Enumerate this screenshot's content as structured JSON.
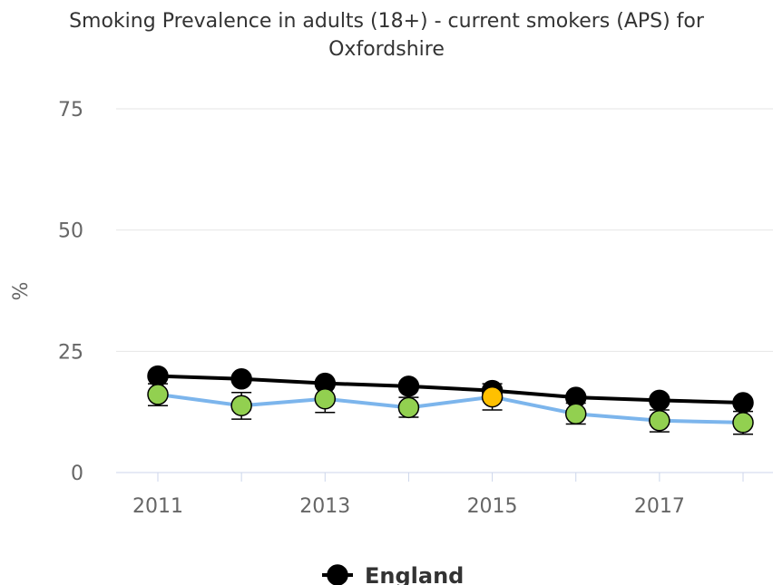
{
  "chart_data": {
    "type": "line",
    "title_lines": [
      "Smoking Prevalence in adults (18+) - current smokers (APS) for",
      "Oxfordshire"
    ],
    "ylabel": "%",
    "xlabel": "",
    "ylim": [
      0,
      75
    ],
    "y_ticks": [
      0,
      25,
      50,
      75
    ],
    "y_tick_labels": [
      "0",
      "25",
      "50",
      "75"
    ],
    "xlim": [
      2010.5,
      2018.5
    ],
    "x_ticks": [
      2011,
      2013,
      2015,
      2017
    ],
    "x_tick_labels": [
      "2011",
      "2013",
      "2015",
      "2017"
    ],
    "x": [
      2011,
      2012,
      2013,
      2014,
      2015,
      2016,
      2017,
      2018
    ],
    "grid": true,
    "legend_position": "bottom",
    "series": [
      {
        "name": "England",
        "in_legend": true,
        "color": "#000000",
        "marker_fill": "#000000",
        "values": [
          19.9,
          19.3,
          18.4,
          17.8,
          16.9,
          15.5,
          14.9,
          14.4
        ]
      },
      {
        "in_legend": false,
        "color": "#7cb5ec",
        "values": [
          16.1,
          13.8,
          15.2,
          13.4,
          15.6,
          12.1,
          10.7,
          10.3
        ],
        "ci_lower": [
          13.8,
          11.0,
          12.4,
          11.4,
          12.9,
          10.0,
          8.4,
          7.9
        ],
        "ci_upper": [
          18.3,
          16.5,
          17.9,
          15.5,
          18.3,
          14.3,
          12.9,
          12.6
        ],
        "marker_fills": [
          "#92d050",
          "#92d050",
          "#92d050",
          "#92d050",
          "#ffc000",
          "#92d050",
          "#92d050",
          "#92d050"
        ]
      }
    ]
  }
}
